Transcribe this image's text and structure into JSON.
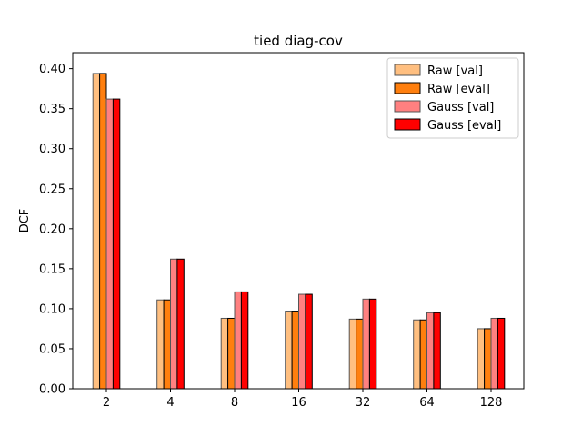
{
  "chart_data": {
    "type": "bar",
    "title": "tied diag-cov",
    "xlabel": "",
    "ylabel": "DCF",
    "categories": [
      "2",
      "4",
      "8",
      "16",
      "32",
      "64",
      "128"
    ],
    "ylim": [
      0,
      0.42
    ],
    "yticks": [
      "0.00",
      "0.05",
      "0.10",
      "0.15",
      "0.20",
      "0.25",
      "0.30",
      "0.35",
      "0.40"
    ],
    "legend_position": "top-right",
    "series": [
      {
        "name": "Raw [val]",
        "color": "#ffbf80",
        "edge": "#555555",
        "values": [
          0.394,
          0.111,
          0.088,
          0.097,
          0.087,
          0.086,
          0.075
        ]
      },
      {
        "name": "Raw [eval]",
        "color": "#ff7f0e",
        "edge": "#000000",
        "values": [
          0.394,
          0.111,
          0.088,
          0.097,
          0.087,
          0.086,
          0.075
        ]
      },
      {
        "name": "Gauss [val]",
        "color": "#ff8080",
        "edge": "#555555",
        "values": [
          0.362,
          0.162,
          0.121,
          0.118,
          0.112,
          0.095,
          0.088
        ]
      },
      {
        "name": "Gauss [eval]",
        "color": "#ff0000",
        "edge": "#000000",
        "values": [
          0.362,
          0.162,
          0.121,
          0.118,
          0.112,
          0.095,
          0.088
        ]
      }
    ]
  }
}
